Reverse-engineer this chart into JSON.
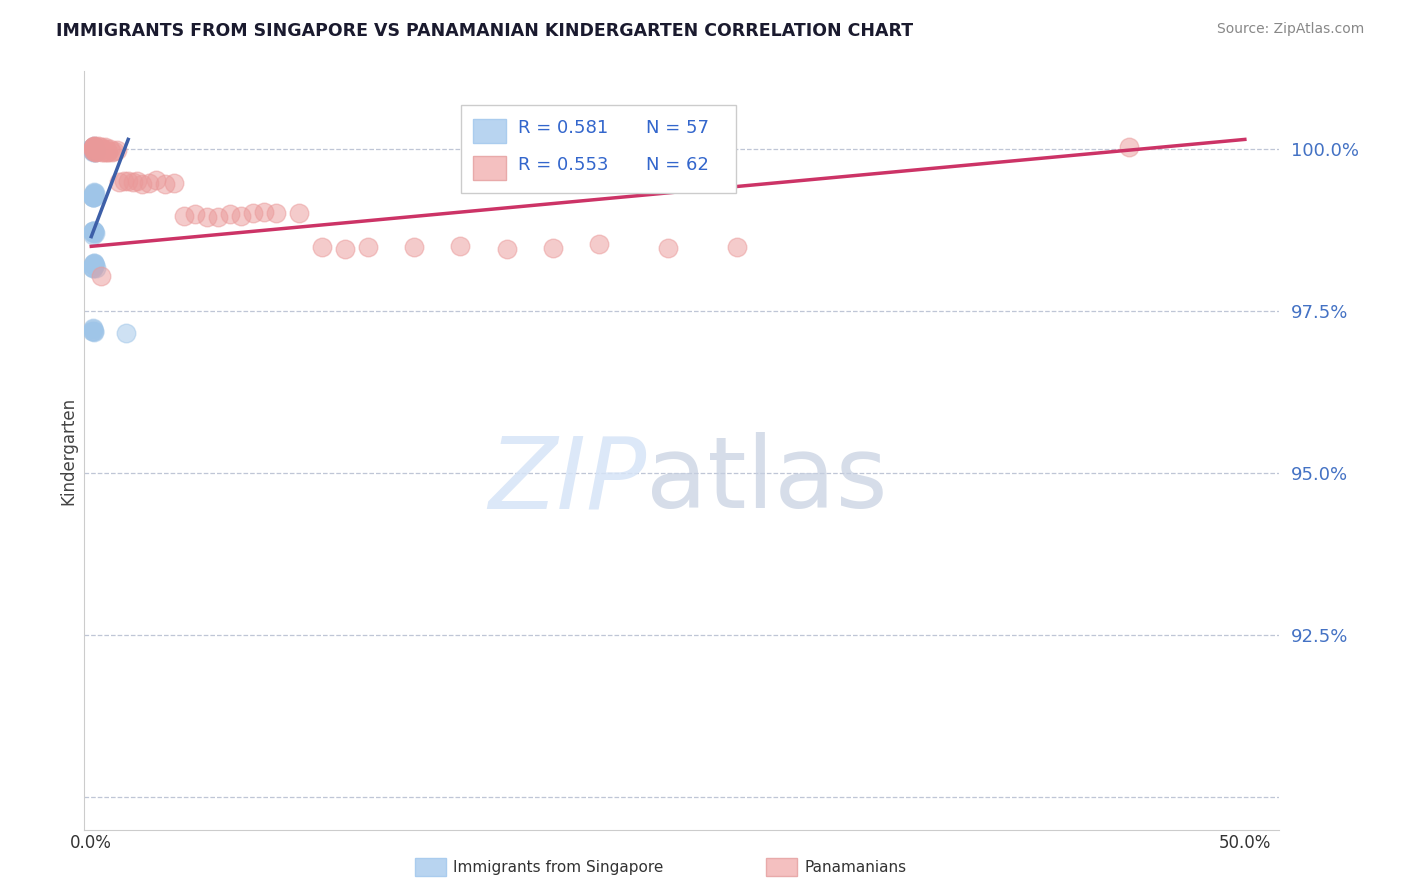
{
  "title": "IMMIGRANTS FROM SINGAPORE VS PANAMANIAN KINDERGARTEN CORRELATION CHART",
  "source": "Source: ZipAtlas.com",
  "ylabel": "Kindergarten",
  "ymin": 89.5,
  "ymax": 101.2,
  "xmin": -0.3,
  "xmax": 51.5,
  "yticks": [
    90.0,
    92.5,
    95.0,
    97.5,
    100.0
  ],
  "ytick_labels": [
    "",
    "92.5%",
    "95.0%",
    "97.5%",
    "100.0%"
  ],
  "xticks": [
    0,
    12.5,
    25.0,
    37.5,
    50.0
  ],
  "xtick_labels": [
    "0.0%",
    "",
    "",
    "",
    "50.0%"
  ],
  "legend_blue_r": "R = 0.581",
  "legend_blue_n": "N = 57",
  "legend_pink_r": "R = 0.553",
  "legend_pink_n": "N = 62",
  "blue_color": "#9fc5e8",
  "pink_color": "#ea9999",
  "blue_line_color": "#3d5fa8",
  "pink_line_color": "#cc3366",
  "blue_line_x0": 0.0,
  "blue_line_x1": 1.6,
  "blue_line_y0": 98.65,
  "blue_line_y1": 100.15,
  "pink_line_x0": 0.0,
  "pink_line_x1": 50.0,
  "pink_line_y0": 98.5,
  "pink_line_y1": 100.15,
  "blue_scatter_x": [
    0.05,
    0.05,
    0.05,
    0.05,
    0.05,
    0.07,
    0.07,
    0.07,
    0.08,
    0.08,
    0.09,
    0.1,
    0.1,
    0.1,
    0.12,
    0.13,
    0.15,
    0.15,
    0.17,
    0.18,
    0.05,
    0.06,
    0.07,
    0.08,
    0.09,
    0.1,
    0.11,
    0.12,
    0.13,
    0.14,
    0.05,
    0.06,
    0.07,
    0.08,
    0.09,
    0.1,
    0.11,
    0.12,
    0.13,
    0.15,
    0.05,
    0.06,
    0.07,
    0.08,
    0.09,
    0.1,
    0.12,
    0.14,
    0.16,
    0.2,
    0.05,
    0.06,
    0.07,
    0.08,
    0.1,
    0.12,
    1.5
  ],
  "blue_scatter_y": [
    100.0,
    100.0,
    100.0,
    100.0,
    100.0,
    100.0,
    100.0,
    100.0,
    100.0,
    100.0,
    100.0,
    100.0,
    100.0,
    100.0,
    100.0,
    100.0,
    100.0,
    100.0,
    100.0,
    100.0,
    99.3,
    99.3,
    99.3,
    99.3,
    99.3,
    99.3,
    99.3,
    99.3,
    99.3,
    99.3,
    98.7,
    98.7,
    98.7,
    98.7,
    98.7,
    98.7,
    98.7,
    98.7,
    98.7,
    98.7,
    98.2,
    98.2,
    98.2,
    98.2,
    98.2,
    98.2,
    98.2,
    98.2,
    98.2,
    98.2,
    97.2,
    97.2,
    97.2,
    97.2,
    97.2,
    97.2,
    97.2
  ],
  "pink_scatter_x": [
    0.06,
    0.07,
    0.08,
    0.09,
    0.1,
    0.11,
    0.12,
    0.13,
    0.14,
    0.15,
    0.17,
    0.19,
    0.21,
    0.23,
    0.25,
    0.28,
    0.31,
    0.35,
    0.4,
    0.45,
    0.5,
    0.55,
    0.6,
    0.65,
    0.7,
    0.75,
    0.8,
    0.9,
    1.0,
    1.1,
    1.2,
    1.4,
    1.6,
    1.8,
    2.0,
    2.2,
    2.5,
    2.8,
    3.2,
    3.6,
    4.0,
    4.5,
    5.0,
    5.5,
    6.0,
    6.5,
    7.0,
    7.5,
    8.0,
    9.0,
    10.0,
    11.0,
    12.0,
    14.0,
    16.0,
    18.0,
    20.0,
    22.0,
    25.0,
    28.0,
    0.4,
    45.0
  ],
  "pink_scatter_y": [
    100.0,
    100.0,
    100.0,
    100.0,
    100.0,
    100.0,
    100.0,
    100.0,
    100.0,
    100.0,
    100.0,
    100.0,
    100.0,
    100.0,
    100.0,
    100.0,
    100.0,
    100.0,
    100.0,
    100.0,
    100.0,
    100.0,
    100.0,
    100.0,
    100.0,
    100.0,
    100.0,
    100.0,
    100.0,
    100.0,
    99.5,
    99.5,
    99.5,
    99.5,
    99.5,
    99.5,
    99.5,
    99.5,
    99.5,
    99.5,
    99.0,
    99.0,
    99.0,
    99.0,
    99.0,
    99.0,
    99.0,
    99.0,
    99.0,
    99.0,
    98.5,
    98.5,
    98.5,
    98.5,
    98.5,
    98.5,
    98.5,
    98.5,
    98.5,
    98.5,
    98.0,
    100.05
  ]
}
